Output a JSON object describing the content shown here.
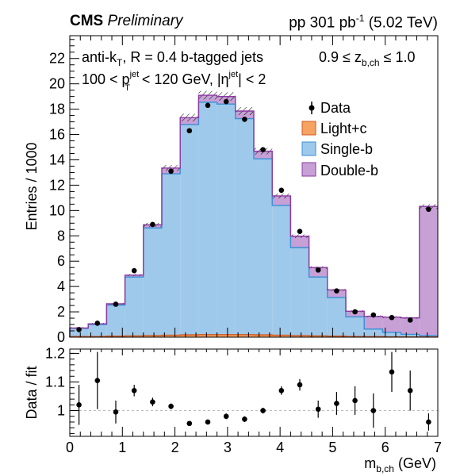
{
  "header": {
    "experiment": "CMS",
    "status": "Preliminary",
    "beam_prefix": "pp 301 pb",
    "beam_sup": "-1",
    "beam_suffix": "(5.02 TeV)"
  },
  "annotations": {
    "line1_pre": "anti-k",
    "line1_sub": "T",
    "line1_post": ", R = 0.4 b-tagged jets",
    "line2_a": "100 < p",
    "line2_sup": "jet",
    "line2_sub": "T",
    "line2_b": " < 120 GeV, |η",
    "line2_sup2": "jet",
    "line2_c": "| < 2",
    "zcut_a": "0.9 ≤ z",
    "zcut_sub": "b,ch",
    "zcut_b": " ≤ 1.0"
  },
  "colors": {
    "light": "#f5a262",
    "single": "#9ec9ea",
    "single_edge": "#3a8fd6",
    "double": "#c7a0d6",
    "double_edge": "#8a3aa0",
    "light_edge": "#d0571f"
  },
  "chart_data": [
    {
      "type": "bar",
      "stacked": true,
      "histogram": true,
      "x_edges": [
        0,
        0.35,
        0.7,
        1.05,
        1.4,
        1.75,
        2.1,
        2.45,
        2.8,
        3.15,
        3.5,
        3.85,
        4.2,
        4.55,
        4.9,
        5.25,
        5.6,
        5.95,
        6.3,
        6.65,
        7.0
      ],
      "series": [
        {
          "name": "Light+c",
          "values": [
            0.05,
            0.05,
            0.08,
            0.1,
            0.12,
            0.15,
            0.18,
            0.2,
            0.2,
            0.2,
            0.18,
            0.15,
            0.12,
            0.1,
            0.08,
            0.05,
            0.04,
            0.03,
            0.02,
            0.02
          ]
        },
        {
          "name": "Single-b",
          "values": [
            0.65,
            0.95,
            2.45,
            4.65,
            8.5,
            12.75,
            16.6,
            18.35,
            18.2,
            17.05,
            13.9,
            10.25,
            6.95,
            4.65,
            3.05,
            1.55,
            0.6,
            0.35,
            0.2,
            0.1
          ]
        },
        {
          "name": "Double-b",
          "values": [
            0.02,
            0.05,
            0.1,
            0.15,
            0.25,
            0.45,
            0.55,
            0.55,
            0.6,
            0.6,
            0.6,
            0.75,
            0.9,
            0.75,
            0.6,
            0.45,
            1.0,
            1.2,
            1.3,
            10.2
          ]
        }
      ],
      "data": {
        "name": "Data",
        "x": [
          0.175,
          0.525,
          0.875,
          1.225,
          1.575,
          1.925,
          2.275,
          2.625,
          2.975,
          3.325,
          3.675,
          4.025,
          4.375,
          4.725,
          5.075,
          5.425,
          5.775,
          6.125,
          6.475,
          6.825
        ],
        "y": [
          0.6,
          1.1,
          2.6,
          5.25,
          8.9,
          13.1,
          16.3,
          18.3,
          18.6,
          17.2,
          14.8,
          11.6,
          8.35,
          5.3,
          3.65,
          2.0,
          1.75,
          1.55,
          1.35,
          10.1
        ]
      },
      "xlim": [
        0,
        7
      ],
      "ylim": [
        0,
        23.8
      ],
      "y_ticks": [
        0,
        2,
        4,
        6,
        8,
        10,
        12,
        14,
        16,
        18,
        20,
        22
      ],
      "ylabel": "Entries / 1000",
      "legend": {
        "placement": "top-right",
        "entries": [
          "Data",
          "Light+c",
          "Single-b",
          "Double-b"
        ]
      }
    },
    {
      "type": "scatter",
      "x": [
        0.175,
        0.525,
        0.875,
        1.225,
        1.575,
        1.925,
        2.275,
        2.625,
        2.975,
        3.325,
        3.675,
        4.025,
        4.375,
        4.725,
        5.075,
        5.425,
        5.775,
        6.125,
        6.475,
        6.825
      ],
      "y": [
        1.02,
        1.105,
        0.995,
        1.07,
        1.03,
        1.015,
        0.955,
        0.96,
        0.98,
        0.97,
        1.0,
        1.07,
        1.09,
        1.005,
        1.025,
        1.035,
        1.0,
        1.135,
        1.07,
        0.96
      ],
      "yerr": [
        0.07,
        0.1,
        0.04,
        0.02,
        0.015,
        0.01,
        0.008,
        0.008,
        0.01,
        0.01,
        0.01,
        0.015,
        0.02,
        0.03,
        0.04,
        0.05,
        0.06,
        0.07,
        0.07,
        0.03
      ],
      "ylabel": "Data / fit",
      "xlabel_main": "m",
      "xlabel_sub": "b,ch",
      "xlabel_unit": " (GeV)",
      "xlim": [
        0,
        7
      ],
      "ylim": [
        0.91,
        1.215
      ],
      "y_ticks": [
        1,
        1.1,
        1.2
      ],
      "x_ticks": [
        0,
        1,
        2,
        3,
        4,
        5,
        6,
        7
      ],
      "reference_line": 1
    }
  ]
}
